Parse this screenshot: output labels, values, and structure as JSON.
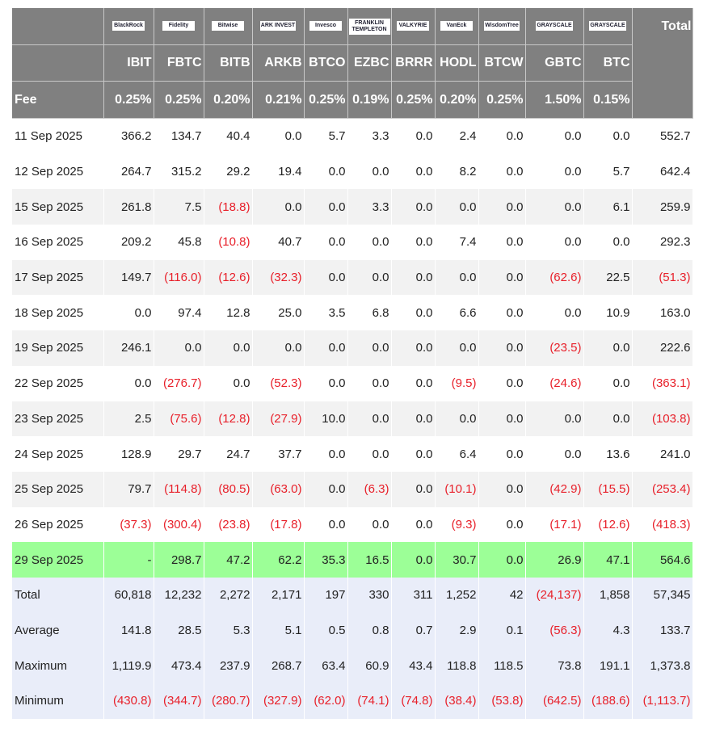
{
  "columns": [
    {
      "logo": "BlackRock",
      "ticker": "IBIT",
      "fee": "0.25%"
    },
    {
      "logo": "Fidelity",
      "ticker": "FBTC",
      "fee": "0.25%"
    },
    {
      "logo": "Bitwise",
      "ticker": "BITB",
      "fee": "0.20%"
    },
    {
      "logo": "ARK INVEST",
      "ticker": "ARKB",
      "fee": "0.21%"
    },
    {
      "logo": "Invesco",
      "ticker": "BTCO",
      "fee": "0.25%"
    },
    {
      "logo": "FRANKLIN TEMPLETON",
      "ticker": "EZBC",
      "fee": "0.19%"
    },
    {
      "logo": "VALKYRIE",
      "ticker": "BRRR",
      "fee": "0.25%"
    },
    {
      "logo": "VanEck",
      "ticker": "HODL",
      "fee": "0.20%"
    },
    {
      "logo": "WisdomTree",
      "ticker": "BTCW",
      "fee": "0.25%"
    },
    {
      "logo": "GRAYSCALE",
      "ticker": "GBTC",
      "fee": "1.50%"
    },
    {
      "logo": "GRAYSCALE",
      "ticker": "BTC",
      "fee": "0.15%"
    }
  ],
  "header": {
    "total_label": "Total",
    "fee_label": "Fee"
  },
  "colors": {
    "header_bg": "#808080",
    "negative": "#e8202a",
    "highlight": "#9cff97",
    "summary_bg": "#e9edf9"
  },
  "rows": [
    {
      "date": "11 Sep 2025",
      "values": [
        "366.2",
        "134.7",
        "40.4",
        "0.0",
        "5.7",
        "3.3",
        "0.0",
        "2.4",
        "0.0",
        "0.0",
        "0.0",
        "552.7"
      ]
    },
    {
      "date": "12 Sep 2025",
      "values": [
        "264.7",
        "315.2",
        "29.2",
        "19.4",
        "0.0",
        "0.0",
        "0.0",
        "8.2",
        "0.0",
        "0.0",
        "5.7",
        "642.4"
      ]
    },
    {
      "date": "15 Sep 2025",
      "values": [
        "261.8",
        "7.5",
        "(18.8)",
        "0.0",
        "0.0",
        "3.3",
        "0.0",
        "0.0",
        "0.0",
        "0.0",
        "6.1",
        "259.9"
      ]
    },
    {
      "date": "16 Sep 2025",
      "values": [
        "209.2",
        "45.8",
        "(10.8)",
        "40.7",
        "0.0",
        "0.0",
        "0.0",
        "7.4",
        "0.0",
        "0.0",
        "0.0",
        "292.3"
      ]
    },
    {
      "date": "17 Sep 2025",
      "values": [
        "149.7",
        "(116.0)",
        "(12.6)",
        "(32.3)",
        "0.0",
        "0.0",
        "0.0",
        "0.0",
        "0.0",
        "(62.6)",
        "22.5",
        "(51.3)"
      ]
    },
    {
      "date": "18 Sep 2025",
      "values": [
        "0.0",
        "97.4",
        "12.8",
        "25.0",
        "3.5",
        "6.8",
        "0.0",
        "6.6",
        "0.0",
        "0.0",
        "10.9",
        "163.0"
      ]
    },
    {
      "date": "19 Sep 2025",
      "values": [
        "246.1",
        "0.0",
        "0.0",
        "0.0",
        "0.0",
        "0.0",
        "0.0",
        "0.0",
        "0.0",
        "(23.5)",
        "0.0",
        "222.6"
      ]
    },
    {
      "date": "22 Sep 2025",
      "values": [
        "0.0",
        "(276.7)",
        "0.0",
        "(52.3)",
        "0.0",
        "0.0",
        "0.0",
        "(9.5)",
        "0.0",
        "(24.6)",
        "0.0",
        "(363.1)"
      ]
    },
    {
      "date": "23 Sep 2025",
      "values": [
        "2.5",
        "(75.6)",
        "(12.8)",
        "(27.9)",
        "10.0",
        "0.0",
        "0.0",
        "0.0",
        "0.0",
        "0.0",
        "0.0",
        "(103.8)"
      ]
    },
    {
      "date": "24 Sep 2025",
      "values": [
        "128.9",
        "29.7",
        "24.7",
        "37.7",
        "0.0",
        "0.0",
        "0.0",
        "6.4",
        "0.0",
        "0.0",
        "13.6",
        "241.0"
      ]
    },
    {
      "date": "25 Sep 2025",
      "values": [
        "79.7",
        "(114.8)",
        "(80.5)",
        "(63.0)",
        "0.0",
        "(6.3)",
        "0.0",
        "(10.1)",
        "0.0",
        "(42.9)",
        "(15.5)",
        "(253.4)"
      ]
    },
    {
      "date": "26 Sep 2025",
      "values": [
        "(37.3)",
        "(300.4)",
        "(23.8)",
        "(17.8)",
        "0.0",
        "0.0",
        "0.0",
        "(9.3)",
        "0.0",
        "(17.1)",
        "(12.6)",
        "(418.3)"
      ]
    },
    {
      "date": "29 Sep 2025",
      "highlight": true,
      "values": [
        "-",
        "298.7",
        "47.2",
        "62.2",
        "35.3",
        "16.5",
        "0.0",
        "30.7",
        "0.0",
        "26.9",
        "47.1",
        "564.6"
      ]
    }
  ],
  "summary": [
    {
      "label": "Total",
      "values": [
        "60,818",
        "12,232",
        "2,272",
        "2,171",
        "197",
        "330",
        "311",
        "1,252",
        "42",
        "(24,137)",
        "1,858",
        "57,345"
      ]
    },
    {
      "label": "Average",
      "values": [
        "141.8",
        "28.5",
        "5.3",
        "5.1",
        "0.5",
        "0.8",
        "0.7",
        "2.9",
        "0.1",
        "(56.3)",
        "4.3",
        "133.7"
      ]
    },
    {
      "label": "Maximum",
      "values": [
        "1,119.9",
        "473.4",
        "237.9",
        "268.7",
        "63.4",
        "60.9",
        "43.4",
        "118.8",
        "118.5",
        "73.8",
        "191.1",
        "1,373.8"
      ]
    },
    {
      "label": "Minimum",
      "values": [
        "(430.8)",
        "(344.7)",
        "(280.7)",
        "(327.9)",
        "(62.0)",
        "(74.1)",
        "(74.8)",
        "(38.4)",
        "(53.8)",
        "(642.5)",
        "(188.6)",
        "(1,113.7)"
      ]
    }
  ]
}
